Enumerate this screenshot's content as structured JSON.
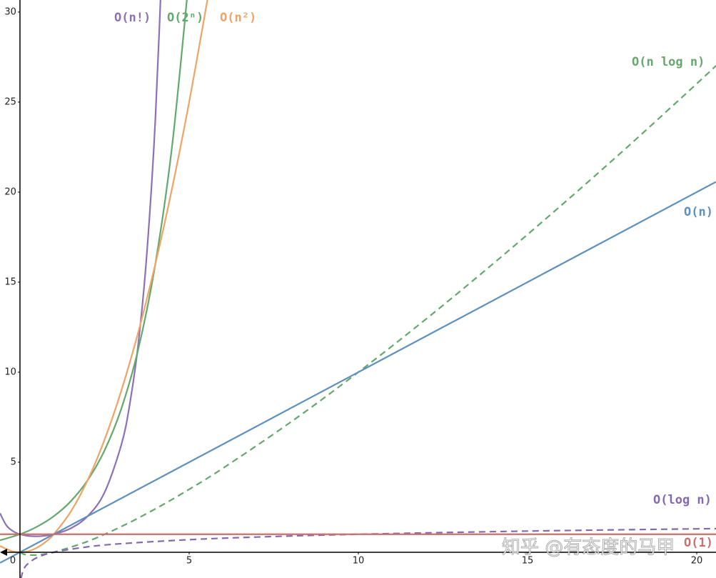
{
  "chart_data": {
    "type": "line",
    "xlim": [
      -0.59,
      20.57
    ],
    "ylim": [
      -1.43,
      30.67
    ],
    "xticks": [
      0,
      5,
      10,
      15,
      20
    ],
    "yticks": [
      5,
      10,
      15,
      20,
      25,
      30
    ],
    "grid": false,
    "watermark": "知乎 @有态度的马甲",
    "series": [
      {
        "name": "O(n!)",
        "color": "#8e70b8",
        "dash": false,
        "x": [
          -0.59,
          -0.4,
          -0.2,
          0,
          0.25,
          0.5,
          0.75,
          1,
          1.5,
          2,
          2.5,
          3,
          3.25,
          3.5,
          3.75,
          4,
          4.25
        ],
        "values": [
          2.163,
          1.489,
          1.164,
          1,
          0.906,
          0.886,
          0.919,
          1,
          1.329,
          2,
          3.323,
          6,
          8.285,
          11.632,
          16.59,
          24,
          35.21
        ]
      },
      {
        "name": "O(2ⁿ)",
        "color": "#63a96c",
        "dash": false,
        "x": [
          -0.59,
          0,
          0.5,
          1,
          1.5,
          2,
          2.5,
          3,
          3.5,
          4,
          4.5,
          5
        ],
        "values": [
          0.664,
          1,
          1.414,
          2,
          2.828,
          4,
          5.657,
          8,
          11.31,
          16,
          22.63,
          32
        ]
      },
      {
        "name": "O(n²)",
        "color": "#eea465",
        "dash": false,
        "x": [
          -0.59,
          -0.25,
          0,
          0.25,
          0.5,
          0.75,
          1,
          1.5,
          2,
          2.5,
          3,
          3.5,
          4,
          4.5,
          5,
          5.5,
          5.6
        ],
        "values": [
          0.348,
          0.0625,
          0,
          0.0625,
          0.25,
          0.5625,
          1,
          2.25,
          4,
          6.25,
          9,
          12.25,
          16,
          20.25,
          25,
          30.25,
          31.36
        ]
      },
      {
        "name": "O(n log n)",
        "color": "#63a96c",
        "dash": true,
        "x": [
          0,
          0.1,
          0.25,
          0.5,
          0.75,
          1,
          2,
          3,
          4,
          5,
          6,
          8,
          10,
          12,
          14,
          16,
          18,
          20,
          20.57
        ],
        "values": [
          0,
          -0.1,
          -0.151,
          -0.151,
          -0.094,
          0,
          0.602,
          1.431,
          2.408,
          3.495,
          4.669,
          7.225,
          10,
          12.95,
          16.05,
          19.27,
          22.59,
          26.02,
          27.02
        ]
      },
      {
        "name": "O(n)",
        "color": "#5d90bd",
        "dash": false,
        "x": [
          -0.59,
          20.57
        ],
        "values": [
          -0.59,
          20.57
        ]
      },
      {
        "name": "O(log n)",
        "color": "#8668b0",
        "dash": true,
        "x": [
          0.035,
          0.05,
          0.1,
          0.2,
          0.5,
          1,
          2,
          3,
          5,
          7,
          10,
          15,
          20,
          20.57
        ],
        "values": [
          -1.456,
          -1.301,
          -1,
          -0.699,
          -0.301,
          0,
          0.301,
          0.477,
          0.699,
          0.845,
          1,
          1.176,
          1.301,
          1.313
        ]
      },
      {
        "name": "O(1)",
        "color": "#c8716c",
        "dash": false,
        "x": [
          -0.59,
          20.57
        ],
        "values": [
          1,
          1
        ]
      }
    ]
  }
}
